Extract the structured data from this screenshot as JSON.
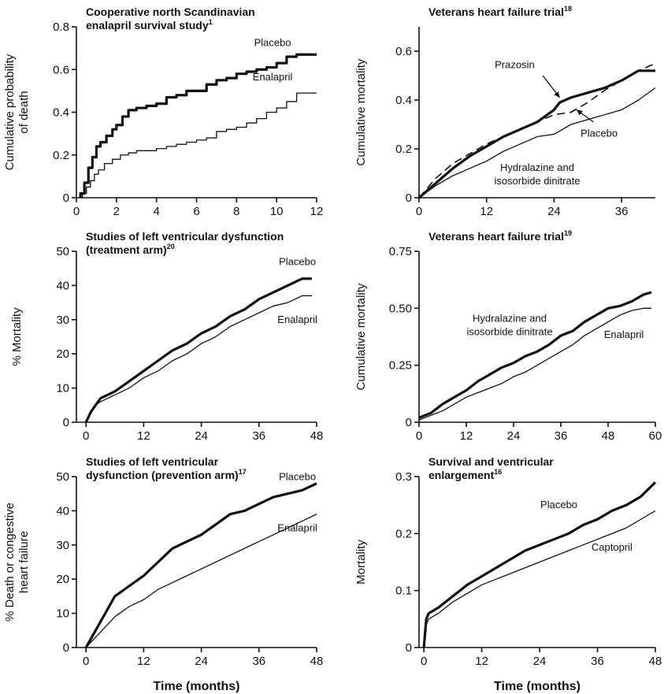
{
  "shared": {
    "xlabel": "Time (months)"
  },
  "chart_data": [
    {
      "type": "line",
      "title_lines": [
        "Cooperative  north Scandinavian",
        "enalapril survival study"
      ],
      "title_sup": "1",
      "ylabel_lines": [
        "Cumulative probability",
        "of death"
      ],
      "xlabel": "",
      "xlim": [
        0,
        12
      ],
      "xticks": [
        0,
        2,
        4,
        6,
        8,
        10,
        12
      ],
      "ylim": [
        0,
        0.8
      ],
      "yticks": [
        0,
        0.2,
        0.4,
        0.6,
        0.8
      ],
      "ytick_labels": [
        "0",
        "0.2",
        "0.4",
        "0.6",
        "0.8"
      ],
      "step": true,
      "series": [
        {
          "name": "Placebo",
          "weight": "thick",
          "label_at": [
            9.8,
            0.71
          ],
          "x": [
            0.2,
            0.4,
            0.6,
            0.8,
            1.0,
            1.2,
            1.5,
            1.8,
            2.0,
            2.3,
            2.6,
            3.0,
            3.5,
            4.0,
            4.5,
            5.0,
            5.5,
            6.0,
            6.5,
            7.0,
            7.5,
            8.0,
            8.5,
            9.0,
            9.5,
            10.0,
            10.5,
            11.0,
            12.0
          ],
          "values": [
            0.02,
            0.07,
            0.14,
            0.19,
            0.24,
            0.26,
            0.29,
            0.32,
            0.34,
            0.38,
            0.41,
            0.42,
            0.43,
            0.44,
            0.47,
            0.48,
            0.5,
            0.5,
            0.53,
            0.55,
            0.56,
            0.58,
            0.59,
            0.6,
            0.61,
            0.63,
            0.66,
            0.67,
            0.67
          ]
        },
        {
          "name": "Enalapril",
          "weight": "thin",
          "label_at": [
            9.8,
            0.55
          ],
          "x": [
            0.3,
            0.5,
            0.7,
            0.9,
            1.1,
            1.4,
            1.8,
            2.2,
            2.6,
            3.0,
            3.5,
            4.0,
            4.5,
            5.0,
            5.5,
            6.0,
            6.5,
            7.0,
            7.5,
            8.0,
            8.5,
            9.0,
            9.5,
            10.0,
            10.5,
            11.0,
            12.0
          ],
          "values": [
            0.02,
            0.05,
            0.08,
            0.11,
            0.13,
            0.16,
            0.18,
            0.2,
            0.21,
            0.22,
            0.22,
            0.23,
            0.24,
            0.25,
            0.26,
            0.27,
            0.28,
            0.31,
            0.32,
            0.33,
            0.35,
            0.37,
            0.4,
            0.42,
            0.45,
            0.49,
            0.49
          ]
        }
      ]
    },
    {
      "type": "line",
      "title_lines": [
        "Veterans heart failure trial"
      ],
      "title_sup": "18",
      "ylabel_lines": [
        "Cumulative mortality"
      ],
      "xlabel": "",
      "xlim": [
        0,
        42
      ],
      "xticks": [
        0,
        12,
        24,
        36
      ],
      "ylim": [
        0,
        0.7
      ],
      "yticks": [
        0,
        0.2,
        0.4,
        0.6
      ],
      "ytick_labels": [
        "0",
        "0.2",
        "0.4",
        "0.6"
      ],
      "series": [
        {
          "name": "Prazosin",
          "weight": "thick",
          "label_at": [
            17,
            0.53
          ],
          "x": [
            0,
            3,
            6,
            9,
            12,
            15,
            18,
            21,
            24,
            25,
            27,
            30,
            33,
            36,
            39,
            42
          ],
          "values": [
            0,
            0.06,
            0.12,
            0.17,
            0.21,
            0.25,
            0.28,
            0.31,
            0.36,
            0.39,
            0.41,
            0.43,
            0.45,
            0.48,
            0.52,
            0.52
          ]
        },
        {
          "name": "Placebo",
          "weight": "dashed",
          "label_at": [
            32,
            0.25
          ],
          "x": [
            0,
            3,
            6,
            9,
            12,
            15,
            18,
            21,
            24,
            27,
            30,
            33,
            36,
            39,
            42
          ],
          "values": [
            0,
            0.08,
            0.14,
            0.18,
            0.22,
            0.25,
            0.28,
            0.31,
            0.34,
            0.35,
            0.39,
            0.44,
            0.48,
            0.52,
            0.55
          ]
        },
        {
          "name": "Hydralazine and isosorbide dinitrate",
          "weight": "thin",
          "label_lines": [
            "Hydralazine and",
            "isosorbide dinitrate"
          ],
          "label_at": [
            21,
            0.11
          ],
          "x": [
            0,
            3,
            6,
            9,
            12,
            15,
            18,
            21,
            24,
            27,
            30,
            33,
            36,
            39,
            42
          ],
          "values": [
            0,
            0.05,
            0.09,
            0.12,
            0.15,
            0.19,
            0.22,
            0.25,
            0.26,
            0.3,
            0.32,
            0.34,
            0.36,
            0.4,
            0.45
          ]
        }
      ],
      "annotations": [
        {
          "from": [
            22,
            0.5
          ],
          "to": [
            25,
            0.41
          ]
        },
        {
          "from": [
            31,
            0.31
          ],
          "to": [
            28,
            0.36
          ]
        }
      ]
    },
    {
      "type": "line",
      "title_lines": [
        "Studies of left ventricular dysfunction",
        "(treatment arm)"
      ],
      "title_sup": "20",
      "ylabel_lines": [
        "% Mortality"
      ],
      "xlabel": "",
      "xlim": [
        -2,
        48
      ],
      "xticks": [
        0,
        12,
        24,
        36,
        48
      ],
      "ylim": [
        0,
        50
      ],
      "yticks": [
        0,
        10,
        20,
        30,
        40,
        50
      ],
      "ytick_labels": [
        "0",
        "10",
        "20",
        "30",
        "40",
        "50"
      ],
      "series": [
        {
          "name": "Placebo",
          "weight": "thick",
          "label_at": [
            44,
            46
          ],
          "x": [
            0,
            1,
            2,
            3,
            6,
            9,
            12,
            15,
            18,
            21,
            24,
            27,
            30,
            33,
            36,
            39,
            42,
            45,
            47
          ],
          "values": [
            0,
            3,
            5,
            7,
            9,
            12,
            15,
            18,
            21,
            23,
            26,
            28,
            31,
            33,
            36,
            38,
            40,
            42,
            42
          ]
        },
        {
          "name": "Enalapril",
          "weight": "thin",
          "label_at": [
            44,
            29
          ],
          "x": [
            0,
            1,
            2,
            3,
            6,
            9,
            12,
            15,
            18,
            21,
            24,
            27,
            30,
            33,
            36,
            39,
            42,
            45,
            47
          ],
          "values": [
            0,
            3,
            5,
            6,
            8,
            10,
            13,
            15,
            18,
            20,
            23,
            25,
            28,
            30,
            32,
            34,
            35,
            37,
            37
          ]
        }
      ]
    },
    {
      "type": "line",
      "title_lines": [
        "Veterans heart failure trial"
      ],
      "title_sup": "19",
      "ylabel_lines": [
        "Cumulative mortality"
      ],
      "xlabel": "",
      "xlim": [
        0,
        60
      ],
      "xticks": [
        0,
        12,
        24,
        36,
        48,
        60
      ],
      "ylim": [
        0,
        0.75
      ],
      "yticks": [
        0,
        0.25,
        0.5,
        0.75
      ],
      "ytick_labels": [
        "0",
        "0.25",
        "0.50",
        "0.75"
      ],
      "series": [
        {
          "name": "Hydralazine and isosorbide dinitrate",
          "weight": "thick",
          "label_lines": [
            "Hydralazine and",
            "isosorbide dinitrate"
          ],
          "label_at": [
            23,
            0.44
          ],
          "x": [
            0,
            3,
            6,
            9,
            12,
            15,
            18,
            21,
            24,
            27,
            30,
            33,
            36,
            39,
            42,
            45,
            48,
            51,
            54,
            57,
            59
          ],
          "values": [
            0.02,
            0.04,
            0.08,
            0.11,
            0.14,
            0.18,
            0.21,
            0.24,
            0.26,
            0.29,
            0.31,
            0.34,
            0.38,
            0.4,
            0.44,
            0.47,
            0.5,
            0.51,
            0.53,
            0.56,
            0.57
          ]
        },
        {
          "name": "Enalapril",
          "weight": "thin",
          "label_at": [
            52,
            0.37
          ],
          "x": [
            0,
            3,
            6,
            9,
            12,
            15,
            18,
            21,
            24,
            27,
            30,
            33,
            36,
            39,
            42,
            45,
            48,
            51,
            54,
            57,
            59
          ],
          "values": [
            0.01,
            0.03,
            0.05,
            0.08,
            0.11,
            0.13,
            0.15,
            0.17,
            0.2,
            0.22,
            0.25,
            0.28,
            0.31,
            0.34,
            0.38,
            0.41,
            0.44,
            0.47,
            0.49,
            0.5,
            0.5
          ]
        }
      ]
    },
    {
      "type": "line",
      "title_lines": [
        "Studies of left ventricular",
        "dysfunction (prevention arm)"
      ],
      "title_sup": "17",
      "ylabel_lines": [
        "% Death or congestive",
        "heart failure"
      ],
      "xlabel_key": "shared.xlabel",
      "xlim": [
        -2,
        48
      ],
      "xticks": [
        0,
        12,
        24,
        36,
        48
      ],
      "ylim": [
        0,
        50
      ],
      "yticks": [
        0,
        10,
        20,
        30,
        40,
        50
      ],
      "ytick_labels": [
        "0",
        "10",
        "20",
        "30",
        "40",
        "50"
      ],
      "series": [
        {
          "name": "Placebo",
          "weight": "thick",
          "label_at": [
            44,
            49
          ],
          "x": [
            0,
            2,
            4,
            6,
            9,
            12,
            15,
            18,
            21,
            24,
            27,
            30,
            33,
            36,
            39,
            42,
            45,
            48
          ],
          "values": [
            0,
            5,
            10,
            15,
            18,
            21,
            25,
            29,
            31,
            33,
            36,
            39,
            40,
            42,
            44,
            45,
            46,
            48
          ]
        },
        {
          "name": "Enalapril",
          "weight": "thin",
          "label_at": [
            44,
            34
          ],
          "x": [
            0,
            2,
            4,
            6,
            9,
            12,
            15,
            18,
            21,
            24,
            27,
            30,
            33,
            36,
            39,
            42,
            45,
            48
          ],
          "values": [
            0,
            3,
            6,
            9,
            12,
            14,
            17,
            19,
            21,
            23,
            25,
            27,
            29,
            31,
            33,
            35,
            37,
            39
          ]
        }
      ]
    },
    {
      "type": "line",
      "title_lines": [
        "Survival and ventricular",
        "enlargement"
      ],
      "title_sup": "16",
      "ylabel_lines": [
        "Mortality"
      ],
      "xlabel_key": "shared.xlabel",
      "xlim": [
        -1,
        48
      ],
      "xticks": [
        0,
        12,
        24,
        36,
        48
      ],
      "ylim": [
        0,
        0.3
      ],
      "yticks": [
        0,
        0.1,
        0.2,
        0.3
      ],
      "ytick_labels": [
        "0",
        "0.1",
        "0.2",
        "0.3"
      ],
      "series": [
        {
          "name": "Placebo",
          "weight": "thick",
          "label_at": [
            28,
            0.245
          ],
          "x": [
            0,
            0.5,
            1,
            3,
            6,
            9,
            12,
            15,
            18,
            21,
            24,
            27,
            30,
            33,
            36,
            39,
            42,
            45,
            48
          ],
          "values": [
            0,
            0.05,
            0.06,
            0.07,
            0.09,
            0.11,
            0.125,
            0.14,
            0.155,
            0.17,
            0.18,
            0.19,
            0.2,
            0.215,
            0.225,
            0.24,
            0.25,
            0.265,
            0.29
          ]
        },
        {
          "name": "Captopril",
          "weight": "thin",
          "label_at": [
            39,
            0.17
          ],
          "x": [
            0,
            0.5,
            1,
            3,
            6,
            9,
            12,
            15,
            18,
            21,
            24,
            27,
            30,
            33,
            36,
            39,
            42,
            45,
            48
          ],
          "values": [
            0,
            0.04,
            0.05,
            0.06,
            0.08,
            0.095,
            0.11,
            0.12,
            0.13,
            0.14,
            0.15,
            0.16,
            0.17,
            0.18,
            0.19,
            0.2,
            0.21,
            0.225,
            0.24
          ]
        }
      ]
    }
  ]
}
